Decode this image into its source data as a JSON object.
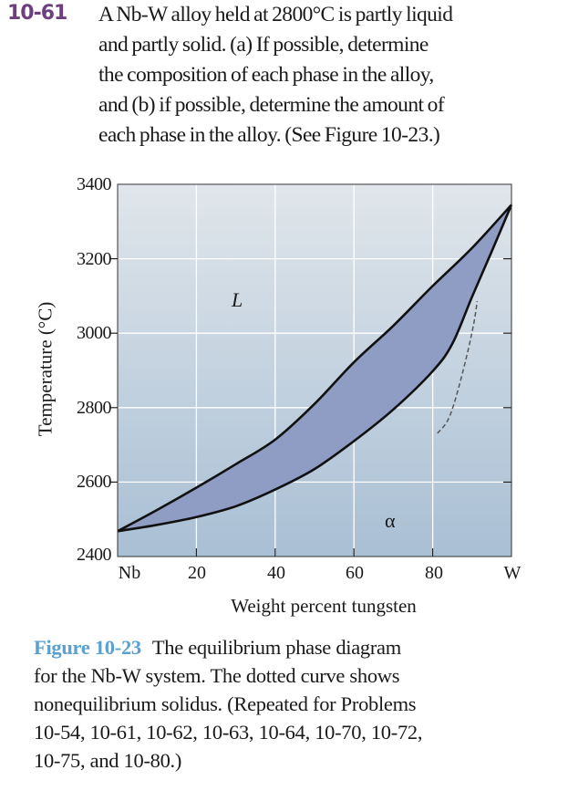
{
  "problem": {
    "number": "10-61",
    "lines": [
      "A Nb-W alloy held at 2800°C is partly liquid",
      "and partly solid. (a) If possible, determine",
      "the composition of each phase in the alloy,",
      "and (b) if possible, determine the amount of",
      "each phase in the alloy. (See Figure 10-23.)"
    ]
  },
  "caption": {
    "label": "Figure 10-23",
    "first_line": "The equilibrium phase diagram",
    "lines": [
      "for the Nb-W system. The dotted curve shows",
      "nonequilibrium solidus. (Repeated for Problems",
      "10-54, 10-61, 10-62, 10-63, 10-64, 10-70, 10-72,",
      "10-75, and 10-80.)"
    ]
  },
  "chart_data": {
    "type": "line",
    "xlabel": "Weight percent tungsten",
    "ylabel": "Temperature (°C)",
    "xlim": [
      0,
      100
    ],
    "ylim": [
      2400,
      3400
    ],
    "x_ticks": [
      "Nb",
      "20",
      "40",
      "60",
      "80",
      "W"
    ],
    "y_ticks": [
      "3400",
      "3200",
      "3000",
      "2800",
      "2600",
      "2400"
    ],
    "grid": true,
    "region_labels": [
      {
        "text": "L",
        "x": 31,
        "y": 3195
      },
      {
        "text": "α",
        "x": 69,
        "y": 2515
      }
    ],
    "series": [
      {
        "style": "solid",
        "x": [
          0,
          10,
          20,
          30,
          40,
          50,
          60,
          70,
          80,
          90,
          100
        ],
        "y": [
          2468,
          2525,
          2585,
          2648,
          2714,
          2810,
          2922,
          3020,
          3127,
          3229,
          3345
        ]
      },
      {
        "style": "solid",
        "x": [
          0,
          10,
          20,
          30,
          40,
          50,
          60,
          70,
          80,
          85,
          90,
          95,
          100
        ],
        "y": [
          2468,
          2485,
          2506,
          2535,
          2580,
          2635,
          2710,
          2795,
          2898,
          2972,
          3098,
          3220,
          3345
        ]
      },
      {
        "style": "dashed",
        "x": [
          81.2,
          83.5,
          85.1,
          87,
          89,
          90.5,
          91.3
        ],
        "y": [
          2731,
          2760,
          2800,
          2870,
          2955,
          3030,
          3086
        ]
      }
    ],
    "colors": {
      "two_phase_fill": "#8f9dc4",
      "background_top": "#e0e6eb",
      "background_bottom": "#a9bfd4",
      "grid": "#ffffff"
    }
  }
}
